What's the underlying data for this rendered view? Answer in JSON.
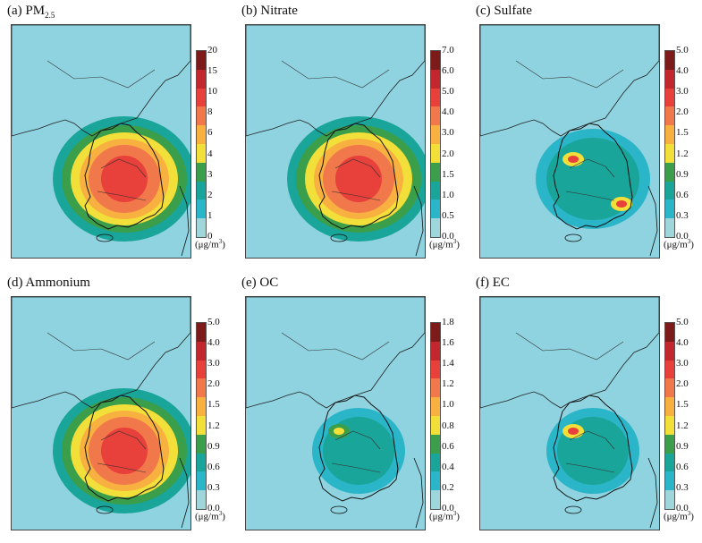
{
  "figure": {
    "panels": [
      {
        "id": "a",
        "label_prefix": "(a) PM",
        "label_sub": "2.5",
        "ticks": [
          "20",
          "15",
          "10",
          "8",
          "6",
          "4",
          "3",
          "2",
          "1",
          "0"
        ],
        "unit": "(μg/m",
        "unit_sup": "3",
        "unit_close": ")",
        "extent_level": "wide",
        "hotspots": []
      },
      {
        "id": "b",
        "label_prefix": "(b) Nitrate",
        "label_sub": "",
        "ticks": [
          "7.0",
          "6.0",
          "5.0",
          "4.0",
          "3.0",
          "2.0",
          "1.5",
          "1.0",
          "0.5",
          "0.0"
        ],
        "unit": "(μg/m",
        "unit_sup": "3",
        "unit_close": ")",
        "extent_level": "wide",
        "hotspots": []
      },
      {
        "id": "c",
        "label_prefix": "(c) Sulfate",
        "label_sub": "",
        "ticks": [
          "5.0",
          "4.0",
          "3.0",
          "2.0",
          "1.5",
          "1.2",
          "0.9",
          "0.6",
          "0.3",
          "0.0"
        ],
        "unit": "(μg/m",
        "unit_sup": "3",
        "unit_close": ")",
        "extent_level": "medium",
        "hotspots": [
          "northwest",
          "southeast"
        ]
      },
      {
        "id": "d",
        "label_prefix": "(d) Ammonium",
        "label_sub": "",
        "ticks": [
          "5.0",
          "4.0",
          "3.0",
          "2.0",
          "1.5",
          "1.2",
          "0.9",
          "0.6",
          "0.3",
          "0.0"
        ],
        "unit": "(μg/m",
        "unit_sup": "3",
        "unit_close": ")",
        "extent_level": "wide",
        "hotspots": []
      },
      {
        "id": "e",
        "label_prefix": "(e) OC",
        "label_sub": "",
        "ticks": [
          "1.8",
          "1.6",
          "1.4",
          "1.2",
          "1.0",
          "0.8",
          "0.6",
          "0.4",
          "0.2",
          "0.0"
        ],
        "unit": "(μg/m",
        "unit_sup": "3",
        "unit_close": ")",
        "extent_level": "low",
        "hotspots": [
          "northwest-light"
        ]
      },
      {
        "id": "f",
        "label_prefix": "(f) EC",
        "label_sub": "",
        "ticks": [
          "5.0",
          "4.0",
          "3.0",
          "2.0",
          "1.5",
          "1.2",
          "0.9",
          "0.6",
          "0.3",
          "0.0"
        ],
        "unit": "(μg/m",
        "unit_sup": "3",
        "unit_close": ")",
        "extent_level": "low",
        "hotspots": [
          "northwest"
        ]
      }
    ],
    "colorbar": [
      "#7d1a1a",
      "#c1272d",
      "#e8403a",
      "#f0784a",
      "#f8b040",
      "#f2df3a",
      "#3a9e4a",
      "#1aa59a",
      "#2bb5c8",
      "#9fd6dc"
    ],
    "colors": {
      "sea": "#8ed3df",
      "land_boundary": "#222222",
      "coast": "#111111"
    }
  }
}
